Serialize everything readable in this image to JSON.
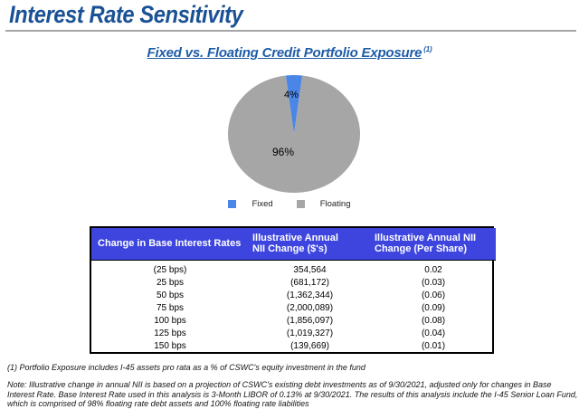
{
  "page": {
    "title": "Interest Rate Sensitivity"
  },
  "chart_data": [
    {
      "type": "pie",
      "title": "Fixed vs. Floating Credit Portfolio Exposure",
      "title_footnote_ref": "(1)",
      "categories": [
        "Fixed",
        "Floating"
      ],
      "values": [
        4,
        96
      ],
      "labels": [
        "4%",
        "96%"
      ],
      "colors": [
        "#4a86e8",
        "#a6a6a6"
      ],
      "legend_position": "bottom"
    },
    {
      "type": "table",
      "columns": [
        "Change in Base Interest Rates",
        "Illustrative Annual\nNII Change ($'s)",
        "Illustrative Annual NII\nChange (Per Share)"
      ],
      "rows": [
        [
          "(25 bps)",
          "354,564",
          "0.02"
        ],
        [
          "25 bps",
          "(681,172)",
          "(0.03)"
        ],
        [
          "50 bps",
          "(1,362,344)",
          "(0.06)"
        ],
        [
          "75 bps",
          "(2,000,089)",
          "(0.09)"
        ],
        [
          "100 bps",
          "(1,856,097)",
          "(0.08)"
        ],
        [
          "125 bps",
          "(1,019,327)",
          "(0.04)"
        ],
        [
          "150 bps",
          "(139,669)",
          "(0.01)"
        ]
      ],
      "header_bg": "#3e45df"
    }
  ],
  "footnotes": {
    "footnote1": "(1) Portfolio Exposure includes I-45 assets pro rata as a % of CSWC's equity investment in the fund",
    "note": "Note:  Illustrative change in annual NII is based on a projection of CSWC's existing debt investments as of 9/30/2021, adjusted only for changes in Base Interest Rate. Base Interest Rate used in this analysis is 3-Month LIBOR of 0.13% at 9/30/2021.  The results of this analysis include the I-45 Senior Loan Fund, which is comprised of 98% floating rate debt assets and 100% floating rate liabilities"
  }
}
